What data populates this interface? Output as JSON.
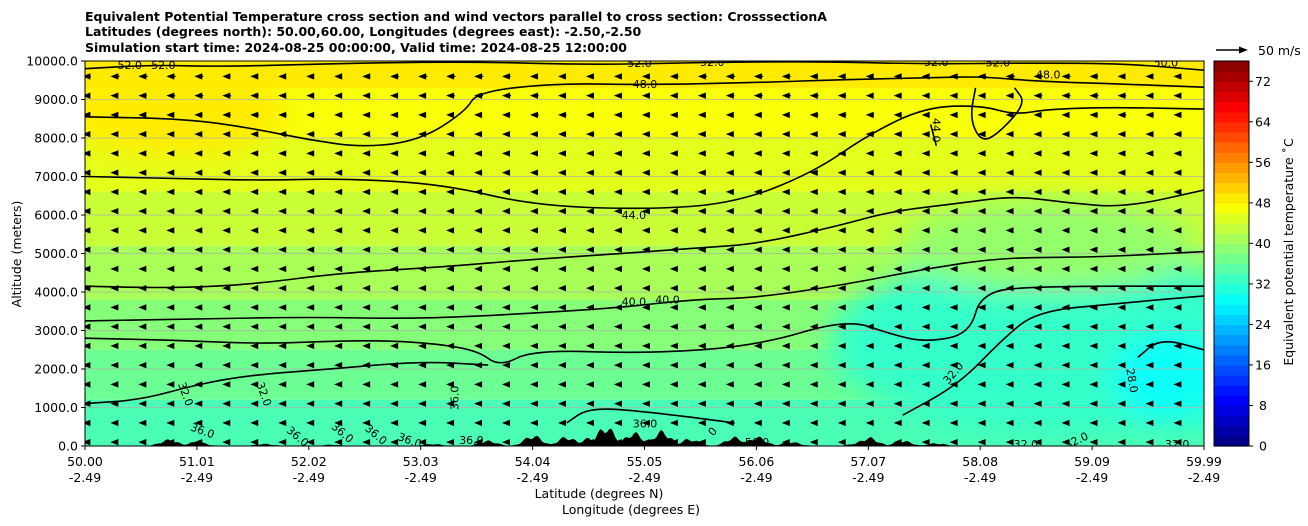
{
  "chart_data": {
    "type": "contour",
    "title_lines": [
      "Equivalent Potential Temperature cross section and wind vectors parallel to cross section: CrosssectionA",
      "Latitudes (degrees north): 50.00,60.00, Longitudes (degrees east): -2.50,-2.50",
      "Simulation start time: 2024-08-25 00:00:00, Valid time: 2024-08-25 12:00:00"
    ],
    "xlabel": "Latitude (degrees N)",
    "xlabel2": "Longitude (degrees E)",
    "ylabel": "Altitude (meters)",
    "xlim": [
      50.0,
      59.99
    ],
    "ylim": [
      0,
      10000
    ],
    "lat_ticks": [
      "50.00",
      "51.01",
      "52.02",
      "53.03",
      "54.04",
      "55.05",
      "56.06",
      "57.07",
      "58.08",
      "59.09",
      "59.99"
    ],
    "lon_ticks": [
      "-2.49",
      "-2.49",
      "-2.49",
      "-2.49",
      "-2.49",
      "-2.49",
      "-2.49",
      "-2.49",
      "-2.49",
      "-2.49",
      "-2.49"
    ],
    "y_ticks": [
      0,
      1000,
      2000,
      3000,
      4000,
      5000,
      6000,
      7000,
      8000,
      9000,
      10000
    ],
    "y_tick_labels": [
      "0.0",
      "1000.0",
      "2000.0",
      "3000.0",
      "4000.0",
      "5000.0",
      "6000.0",
      "7000.0",
      "8000.0",
      "9000.0",
      "10000.0"
    ],
    "grid": "horizontal",
    "colorbar": {
      "label": "Equivalent potential temperature ˚C",
      "range": [
        0,
        76
      ],
      "ticks": [
        0,
        8,
        16,
        24,
        32,
        40,
        48,
        56,
        64,
        72
      ],
      "tick_labels": [
        "0",
        "8",
        "16",
        "24",
        "32",
        "40",
        "48",
        "56",
        "64",
        "72"
      ],
      "colormap": "jet",
      "levels": 38
    },
    "quiver_key": {
      "label": "50 m/s",
      "speed": 50
    },
    "wind_direction": "towards decreasing latitude (south)",
    "contours": [
      {
        "value": 52,
        "points": [
          [
            50.0,
            9800
          ],
          [
            50.6,
            9900
          ],
          [
            51.2,
            9850
          ],
          [
            52.5,
            9950
          ],
          [
            53.5,
            9980
          ],
          [
            54.5,
            9900
          ],
          [
            55.5,
            9960
          ],
          [
            56.5,
            9990
          ],
          [
            57.5,
            9920
          ],
          [
            58.5,
            9950
          ],
          [
            59.3,
            9930
          ],
          [
            59.99,
            9760
          ]
        ]
      },
      {
        "value": 48,
        "points": [
          [
            50.0,
            8550
          ],
          [
            50.9,
            8500
          ],
          [
            51.5,
            8250
          ],
          [
            52.0,
            7950
          ],
          [
            52.5,
            7750
          ],
          [
            53.0,
            7950
          ],
          [
            53.4,
            8700
          ],
          [
            53.5,
            9200
          ],
          [
            54.2,
            9420
          ],
          [
            55.0,
            9380
          ],
          [
            56.0,
            9440
          ],
          [
            56.8,
            9520
          ],
          [
            57.5,
            9560
          ],
          [
            58.0,
            9600
          ],
          [
            58.5,
            9470
          ],
          [
            59.1,
            9420
          ],
          [
            59.99,
            9320
          ]
        ]
      },
      {
        "value": 48,
        "points": [
          [
            57.95,
            9300
          ],
          [
            57.9,
            8500
          ],
          [
            58.0,
            7900
          ],
          [
            58.15,
            8100
          ],
          [
            58.4,
            8900
          ],
          [
            58.3,
            9300
          ]
        ]
      },
      {
        "value": 44,
        "points": [
          [
            50.0,
            7000
          ],
          [
            50.8,
            6950
          ],
          [
            51.6,
            6900
          ],
          [
            52.3,
            6950
          ],
          [
            53.2,
            6800
          ],
          [
            54.0,
            6250
          ],
          [
            55.0,
            6140
          ],
          [
            55.8,
            6300
          ],
          [
            56.5,
            7100
          ],
          [
            57.0,
            8100
          ],
          [
            57.5,
            8800
          ],
          [
            58.0,
            8850
          ],
          [
            58.3,
            8600
          ],
          [
            58.6,
            8750
          ],
          [
            59.2,
            8800
          ],
          [
            59.99,
            8750
          ]
        ]
      },
      {
        "value": 44,
        "points": [
          [
            57.55,
            8350
          ],
          [
            57.6,
            7800
          ]
        ]
      },
      {
        "value": 40,
        "points": [
          [
            50.0,
            4150
          ],
          [
            50.8,
            4100
          ],
          [
            51.5,
            4200
          ],
          [
            52.3,
            4500
          ],
          [
            53.2,
            4650
          ],
          [
            54.0,
            4850
          ],
          [
            54.8,
            5000
          ],
          [
            55.5,
            5150
          ],
          [
            56.0,
            5250
          ],
          [
            56.7,
            5700
          ],
          [
            57.2,
            6100
          ],
          [
            57.8,
            6300
          ],
          [
            58.3,
            6500
          ],
          [
            58.8,
            6300
          ],
          [
            59.3,
            6200
          ],
          [
            59.99,
            6650
          ]
        ]
      },
      {
        "value": 40,
        "points": [
          [
            50.0,
            3250
          ],
          [
            51.0,
            3300
          ],
          [
            52.0,
            3350
          ],
          [
            53.0,
            3300
          ],
          [
            54.0,
            3450
          ],
          [
            54.8,
            3600
          ],
          [
            55.4,
            3800
          ],
          [
            56.0,
            3850
          ],
          [
            56.8,
            4200
          ],
          [
            57.5,
            4600
          ],
          [
            58.2,
            4900
          ],
          [
            59.0,
            4900
          ],
          [
            59.99,
            5050
          ]
        ]
      },
      {
        "value": 36,
        "points": [
          [
            50.0,
            2800
          ],
          [
            50.8,
            2750
          ],
          [
            51.6,
            2650
          ],
          [
            52.4,
            2750
          ],
          [
            53.0,
            2700
          ],
          [
            53.5,
            2500
          ],
          [
            53.7,
            2050
          ],
          [
            54.0,
            2500
          ],
          [
            55.0,
            2400
          ],
          [
            56.0,
            2600
          ],
          [
            56.8,
            3300
          ],
          [
            57.2,
            2900
          ],
          [
            57.5,
            2700
          ],
          [
            57.9,
            2900
          ],
          [
            58.0,
            4000
          ],
          [
            58.5,
            4150
          ],
          [
            59.99,
            4150
          ]
        ]
      },
      {
        "value": 32,
        "points": [
          [
            50.0,
            1100
          ],
          [
            50.5,
            1200
          ],
          [
            51.0,
            1600
          ],
          [
            51.5,
            1850
          ],
          [
            52.2,
            2000
          ],
          [
            53.0,
            2200
          ],
          [
            53.6,
            2100
          ]
        ]
      },
      {
        "value": 32,
        "points": [
          [
            57.3,
            800
          ],
          [
            57.8,
            1600
          ],
          [
            58.2,
            2800
          ],
          [
            58.5,
            3500
          ],
          [
            59.2,
            3700
          ],
          [
            59.99,
            3900
          ]
        ]
      },
      {
        "value": 28,
        "points": [
          [
            59.4,
            2300
          ],
          [
            59.6,
            2800
          ],
          [
            59.99,
            2500
          ]
        ]
      },
      {
        "value": 36,
        "points": [
          [
            54.3,
            600
          ],
          [
            54.5,
            1000
          ],
          [
            55.0,
            900
          ],
          [
            55.8,
            600
          ]
        ]
      }
    ],
    "contour_labels": [
      {
        "text": "52.0",
        "x": 50.4,
        "y": 9900
      },
      {
        "text": "52.0",
        "x": 50.7,
        "y": 9900
      },
      {
        "text": "52.0",
        "x": 54.95,
        "y": 9950
      },
      {
        "text": "52.0",
        "x": 55.6,
        "y": 9980
      },
      {
        "text": "52.0",
        "x": 57.6,
        "y": 9980
      },
      {
        "text": "52.0",
        "x": 58.15,
        "y": 9960
      },
      {
        "text": "50.0",
        "x": 59.65,
        "y": 9960
      },
      {
        "text": "48.0",
        "x": 55.0,
        "y": 9400
      },
      {
        "text": "48.0",
        "x": 58.6,
        "y": 9650
      },
      {
        "text": "44.0",
        "x": 57.6,
        "y": 8200,
        "rotate": 90
      },
      {
        "text": "44.0",
        "x": 54.9,
        "y": 6000
      },
      {
        "text": "40.0",
        "x": 54.9,
        "y": 3750
      },
      {
        "text": "40.0",
        "x": 55.2,
        "y": 3800
      },
      {
        "text": "32.0",
        "x": 57.75,
        "y": 1900,
        "rotate": -50
      },
      {
        "text": "28.0",
        "x": 59.35,
        "y": 1700,
        "rotate": 80
      },
      {
        "text": "32.0",
        "x": 50.9,
        "y": 1350,
        "rotate": 70
      },
      {
        "text": "32.0",
        "x": 51.6,
        "y": 1350,
        "rotate": 70
      },
      {
        "text": "36.0",
        "x": 53.3,
        "y": 1250,
        "rotate": -90
      },
      {
        "text": "36.0",
        "x": 55.0,
        "y": 580
      },
      {
        "text": "36.0",
        "x": 51.05,
        "y": 400,
        "rotate": 20
      },
      {
        "text": "36.0",
        "x": 51.9,
        "y": 250,
        "rotate": 40
      },
      {
        "text": "36.0",
        "x": 52.3,
        "y": 350,
        "rotate": 40
      },
      {
        "text": "36.0",
        "x": 52.6,
        "y": 300,
        "rotate": 40
      },
      {
        "text": "36.0",
        "x": 52.9,
        "y": 150,
        "rotate": 20
      },
      {
        "text": "36.0",
        "x": 53.45,
        "y": 150
      },
      {
        "text": "56.0",
        "x": 56.0,
        "y": 100
      },
      {
        "text": "0",
        "x": 55.6,
        "y": 380,
        "rotate": -50
      },
      {
        "text": "32.0",
        "x": 58.4,
        "y": 50
      },
      {
        "text": "32.0",
        "x": 58.85,
        "y": 150,
        "rotate": -25
      },
      {
        "text": "32.0",
        "x": 59.75,
        "y": 50
      }
    ],
    "terrain_peak_m": 550
  }
}
